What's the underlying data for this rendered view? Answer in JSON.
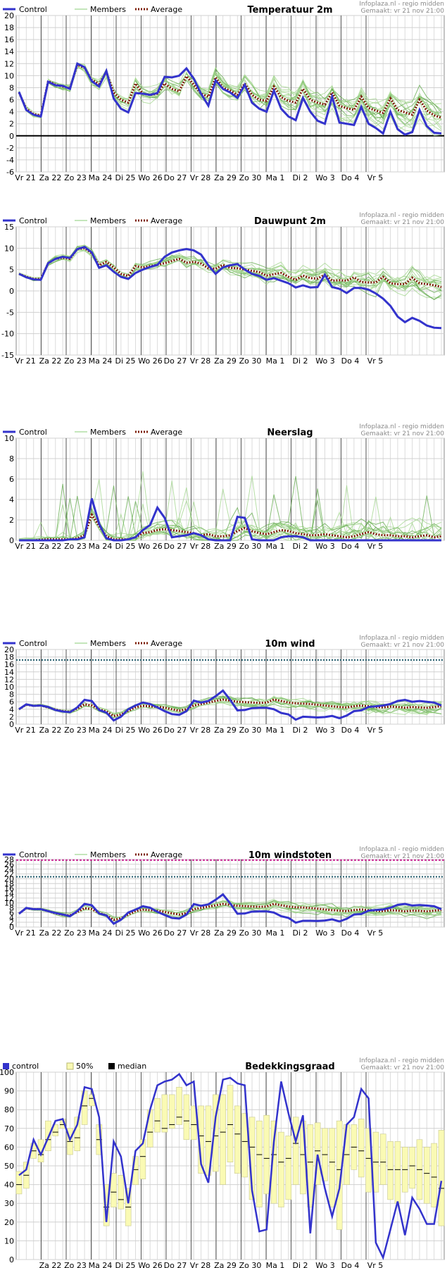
{
  "chart_data": [
    {
      "type": "line",
      "title": "Temperatuur 2m",
      "source": "Infoplaza.nl - regio midden",
      "made": "Gemaakt: vr 21 nov 21:00",
      "legend": [
        "Control",
        "Members",
        "Average"
      ],
      "days": [
        "Vr 21",
        "Za 22",
        "Zo 23",
        "Ma 24",
        "Di 25",
        "Wo 26",
        "Do 27",
        "Vr 28",
        "Za 29",
        "Zo 30",
        "Ma 1",
        "Di 2",
        "Wo 3",
        "Do 4",
        "Vr 5"
      ],
      "ylim": [
        -6,
        20
      ],
      "yticks": [
        -6,
        -4,
        -2,
        0,
        2,
        4,
        6,
        8,
        10,
        12,
        14,
        16,
        18,
        20
      ],
      "zero_line": true,
      "series": [
        {
          "name": "Control",
          "values": [
            7.3,
            4.3,
            3.5,
            3.2,
            9.0,
            8.4,
            8.3,
            7.8,
            12.0,
            11.4,
            9.1,
            8.2,
            10.8,
            6.2,
            4.5,
            3.9,
            7.1,
            7.0,
            6.8,
            7.1,
            9.8,
            9.7,
            10.0,
            11.2,
            9.5,
            7.0,
            5.0,
            9.2,
            7.8,
            7.2,
            6.3,
            8.5,
            5.5,
            4.5,
            4.0,
            7.5,
            4.5,
            3.2,
            2.6,
            6.3,
            4.0,
            2.5,
            2.0,
            6.5,
            2.2,
            2.0,
            1.8,
            4.8,
            2.0,
            1.3,
            0.4,
            4.0,
            1.1,
            0.2,
            0.6,
            4.3,
            1.6,
            0.5,
            0.4
          ]
        },
        {
          "name": "Average",
          "values": [
            7.2,
            4.5,
            3.6,
            3.4,
            9.1,
            8.5,
            8.2,
            7.9,
            11.8,
            11.3,
            9.3,
            8.6,
            10.6,
            7.2,
            6.0,
            5.5,
            8.7,
            7.0,
            6.8,
            7.0,
            8.7,
            7.8,
            7.4,
            9.9,
            8.5,
            7.0,
            6.5,
            9.7,
            8.0,
            7.5,
            6.8,
            8.7,
            6.8,
            6.0,
            5.8,
            8.2,
            6.4,
            5.8,
            5.5,
            7.8,
            6.0,
            5.5,
            5.2,
            7.2,
            5.0,
            4.6,
            4.3,
            6.5,
            4.6,
            4.2,
            3.8,
            6.2,
            4.3,
            3.9,
            3.5,
            6.0,
            4.2,
            3.4,
            3.0
          ]
        }
      ]
    },
    {
      "type": "line",
      "title": "Dauwpunt 2m",
      "source": "Infoplaza.nl - regio midden",
      "made": "Gemaakt: vr 21 nov 21:00",
      "legend": [
        "Control",
        "Members",
        "Average"
      ],
      "days": [
        "Vr 21",
        "Za 22",
        "Zo 23",
        "Ma 24",
        "Di 25",
        "Wo 26",
        "Do 27",
        "Vr 28",
        "Za 29",
        "Zo 30",
        "Ma 1",
        "Di 2",
        "Wo 3",
        "Do 4",
        "Vr 5"
      ],
      "ylim": [
        -15,
        15
      ],
      "yticks": [
        -15,
        -10,
        -5,
        0,
        5,
        10,
        15
      ],
      "series": [
        {
          "name": "Control",
          "values": [
            4.0,
            3.2,
            2.7,
            2.6,
            6.5,
            7.5,
            8.0,
            7.7,
            9.8,
            10.3,
            9.0,
            5.4,
            6.0,
            4.5,
            3.3,
            2.8,
            4.2,
            5.0,
            5.6,
            6.1,
            8.0,
            9.0,
            9.5,
            9.8,
            9.5,
            8.5,
            6.0,
            4.0,
            5.5,
            6.0,
            6.3,
            5.0,
            4.0,
            3.5,
            2.6,
            3.0,
            2.4,
            1.8,
            0.8,
            1.3,
            0.8,
            0.9,
            3.8,
            0.9,
            0.5,
            -0.5,
            0.7,
            0.7,
            0.3,
            -0.6,
            -1.8,
            -3.5,
            -6.0,
            -7.3,
            -6.3,
            -7.0,
            -8.1,
            -8.6,
            -8.7
          ]
        },
        {
          "name": "Average",
          "values": [
            4.0,
            3.3,
            2.8,
            2.8,
            6.5,
            7.5,
            7.8,
            7.5,
            9.8,
            10.0,
            8.8,
            6.0,
            6.8,
            5.5,
            4.0,
            3.5,
            5.8,
            5.5,
            5.8,
            6.1,
            6.5,
            7.0,
            7.5,
            6.6,
            6.8,
            6.4,
            5.3,
            5.2,
            6.1,
            5.4,
            5.3,
            5.0,
            4.7,
            4.4,
            3.6,
            3.9,
            4.2,
            3.3,
            2.6,
            3.6,
            3.0,
            2.9,
            3.8,
            2.4,
            2.5,
            2.4,
            3.2,
            2.1,
            2.0,
            2.0,
            3.3,
            1.8,
            1.6,
            1.6,
            3.1,
            1.8,
            1.6,
            1.3,
            0.9
          ]
        }
      ]
    },
    {
      "type": "line",
      "title": "Neerslag",
      "source": "Infoplaza.nl - regio midden",
      "made": "Gemaakt: vr 21 nov 21:00",
      "legend": [
        "Control",
        "Members",
        "Average"
      ],
      "days": [
        "Vr 21",
        "Za 22",
        "Zo 23",
        "Ma 24",
        "Di 25",
        "Wo 26",
        "Do 27",
        "Vr 28",
        "Za 29",
        "Zo 30",
        "Ma 1",
        "Di 2",
        "Wo 3",
        "Do 4",
        "Vr 5"
      ],
      "ylim": [
        0,
        10
      ],
      "yticks": [
        0,
        2,
        4,
        6,
        8,
        10
      ],
      "series": [
        {
          "name": "Control",
          "values": [
            0,
            0,
            0,
            0,
            0,
            0,
            0,
            0.1,
            0.1,
            0.3,
            4.1,
            1.6,
            0.2,
            0,
            0,
            0.1,
            0.3,
            1.0,
            1.5,
            3.2,
            2.2,
            0.3,
            0.4,
            0.5,
            0.7,
            0.5,
            0.1,
            0,
            0,
            0,
            2.3,
            2.2,
            0.1,
            0,
            0,
            0,
            0.3,
            0.4,
            0.4,
            0.3,
            0,
            0,
            0,
            0,
            0,
            0,
            0,
            0,
            0,
            0,
            0,
            0,
            0,
            0,
            0,
            0,
            0,
            0,
            0
          ]
        },
        {
          "name": "Average",
          "values": [
            0,
            0,
            0,
            0.05,
            0.1,
            0.1,
            0.1,
            0.1,
            0.2,
            0.5,
            2.5,
            1.4,
            0.4,
            0.1,
            0.1,
            0.1,
            0.3,
            0.7,
            0.8,
            1.0,
            1.1,
            1.0,
            0.9,
            0.8,
            0.7,
            0.5,
            0.6,
            0.4,
            0.4,
            0.5,
            0.9,
            1.2,
            0.9,
            0.7,
            0.6,
            0.8,
            1.0,
            0.9,
            0.7,
            0.6,
            0.5,
            0.5,
            0.6,
            0.5,
            0.4,
            0.3,
            0.4,
            0.6,
            0.8,
            0.6,
            0.5,
            0.5,
            0.4,
            0.4,
            0.3,
            0.4,
            0.5,
            0.3,
            0.4
          ]
        }
      ]
    },
    {
      "type": "line",
      "title": "10m wind",
      "source": "Infoplaza.nl - regio midden",
      "made": "Gemaakt: vr 21 nov 21:00",
      "legend": [
        "Control",
        "Members",
        "Average"
      ],
      "days": [
        "Vr 21",
        "Za 22",
        "Zo 23",
        "Ma 24",
        "Di 25",
        "Wo 26",
        "Do 27",
        "Vr 28",
        "Za 29",
        "Zo 30",
        "Ma 1",
        "Di 2",
        "Wo 3",
        "Do 4",
        "Vr 5"
      ],
      "ylim": [
        0,
        20
      ],
      "yticks": [
        0,
        2,
        4,
        6,
        8,
        10,
        12,
        14,
        16,
        18,
        20
      ],
      "threshold": 17.2,
      "series": [
        {
          "name": "Control",
          "values": [
            4.0,
            5.3,
            4.9,
            5.0,
            4.6,
            3.8,
            3.4,
            3.2,
            4.5,
            6.5,
            6.2,
            3.8,
            3.1,
            1.0,
            2.0,
            4.0,
            5.0,
            5.8,
            5.4,
            4.5,
            3.5,
            2.7,
            2.5,
            3.5,
            6.3,
            5.8,
            6.2,
            7.5,
            9.0,
            6.5,
            3.7,
            3.8,
            4.3,
            4.4,
            4.4,
            4.0,
            3.0,
            2.6,
            1.2,
            2.0,
            1.9,
            1.8,
            1.9,
            2.2,
            1.6,
            2.3,
            3.5,
            3.7,
            4.6,
            4.8,
            5.0,
            5.4,
            6.2,
            6.5,
            6.0,
            6.2,
            6.0,
            5.8,
            5.0
          ]
        },
        {
          "name": "Average",
          "values": [
            4.0,
            5.2,
            4.9,
            5.0,
            4.5,
            3.9,
            3.5,
            3.3,
            4.2,
            5.3,
            5.0,
            4.0,
            3.4,
            2.2,
            2.6,
            3.6,
            4.5,
            4.9,
            4.8,
            4.6,
            4.4,
            4.0,
            3.6,
            4.0,
            5.0,
            5.4,
            5.8,
            6.2,
            6.6,
            6.3,
            6.0,
            5.9,
            5.8,
            5.7,
            5.8,
            6.6,
            6.2,
            5.8,
            5.6,
            5.5,
            5.4,
            5.2,
            5.0,
            4.8,
            4.6,
            4.5,
            4.8,
            5.0,
            4.8,
            4.6,
            4.5,
            4.7,
            4.6,
            4.4,
            4.6,
            4.5,
            4.4,
            4.6,
            4.8
          ]
        }
      ]
    },
    {
      "type": "line",
      "title": "10m windstoten",
      "source": "Infoplaza.nl - regio midden",
      "made": "Gemaakt: vr 21 nov 21:00",
      "legend": [
        "Control",
        "Members",
        "Average"
      ],
      "days": [
        "Vr 21",
        "Za 22",
        "Zo 23",
        "Ma 24",
        "Di 25",
        "Wo 26",
        "Do 27",
        "Vr 28",
        "Za 29",
        "Zo 30",
        "Ma 1",
        "Di 2",
        "Wo 3",
        "Do 4",
        "Vr 5"
      ],
      "ylim": [
        0,
        28
      ],
      "yticks": [
        0,
        2,
        4,
        6,
        8,
        10,
        12,
        14,
        16,
        18,
        20,
        22,
        24,
        26,
        28
      ],
      "threshold": 20.8,
      "threshold_top": 28,
      "series": [
        {
          "name": "Control",
          "values": [
            5.5,
            7.9,
            7.4,
            7.4,
            6.6,
            5.8,
            5.2,
            4.5,
            6.6,
            9.6,
            9.0,
            5.6,
            4.8,
            1.4,
            3.0,
            6.0,
            7.2,
            8.6,
            8.0,
            6.3,
            5.0,
            3.8,
            3.5,
            5.2,
            9.5,
            8.8,
            9.4,
            11.3,
            13.5,
            9.8,
            5.5,
            5.6,
            6.4,
            6.5,
            6.5,
            6.0,
            4.5,
            3.8,
            1.8,
            2.6,
            2.6,
            2.5,
            2.7,
            3.2,
            2.3,
            3.4,
            5.2,
            5.4,
            6.8,
            7.1,
            7.3,
            8.0,
            9.2,
            9.6,
            8.9,
            9.1,
            8.9,
            8.6,
            7.4
          ]
        },
        {
          "name": "Average",
          "values": [
            5.6,
            7.8,
            7.4,
            7.4,
            6.6,
            5.7,
            5.1,
            4.8,
            6.2,
            7.8,
            7.4,
            5.8,
            4.8,
            3.0,
            3.6,
            5.2,
            6.6,
            7.2,
            7.0,
            6.7,
            6.3,
            5.7,
            5.2,
            5.8,
            7.4,
            7.9,
            8.4,
            9.0,
            9.6,
            9.2,
            8.8,
            8.7,
            8.5,
            8.4,
            8.5,
            9.6,
            9.0,
            8.5,
            8.2,
            8.1,
            7.9,
            7.6,
            7.3,
            7.0,
            6.8,
            6.6,
            7.0,
            7.3,
            7.0,
            6.8,
            6.6,
            7.0,
            6.8,
            6.5,
            6.8,
            6.7,
            6.5,
            6.8,
            7.1
          ]
        }
      ]
    },
    {
      "type": "bar",
      "title": "Bedekkingsgraad",
      "source": "Infoplaza.nl - regio midden",
      "made": "Gemaakt: vr 21 nov 21:00",
      "legend": [
        "control",
        "50%",
        "median"
      ],
      "days": [
        "Za 22",
        "Zo 23",
        "Ma 24",
        "Di 25",
        "Wo 26",
        "Do 27",
        "Vr 28",
        "Za 29",
        "Zo 30",
        "Ma 1",
        "Di 2",
        "Wo 3",
        "Do 4",
        "Vr 5"
      ],
      "ylim": [
        0,
        100
      ],
      "yticks": [
        0,
        10,
        20,
        30,
        40,
        50,
        60,
        70,
        80,
        90,
        100
      ],
      "series": [
        {
          "name": "control",
          "values": [
            45,
            48,
            64,
            56,
            65,
            74,
            75,
            64,
            72,
            92,
            91,
            76,
            20,
            63,
            55,
            30,
            58,
            62,
            80,
            93,
            95,
            96,
            99,
            93,
            95,
            51,
            41,
            76,
            96,
            97,
            94,
            93,
            37,
            15,
            16,
            63,
            95,
            78,
            63,
            77,
            14,
            56,
            38,
            23,
            38,
            72,
            76,
            91,
            86,
            9,
            1,
            16,
            31,
            13,
            33,
            27,
            19,
            19,
            42
          ]
        },
        {
          "name": "50% low",
          "values": [
            35,
            38,
            54,
            52,
            58,
            66,
            70,
            56,
            58,
            72,
            82,
            56,
            18,
            28,
            27,
            18,
            40,
            43,
            60,
            68,
            68,
            70,
            72,
            64,
            64,
            46,
            45,
            47,
            40,
            52,
            46,
            44,
            32,
            28,
            35,
            30,
            28,
            32,
            40,
            35,
            28,
            40,
            42,
            28,
            16,
            40,
            48,
            44,
            36,
            36,
            40,
            32,
            30,
            36,
            38,
            32,
            30,
            28,
            18
          ]
        },
        {
          "name": "50% high",
          "values": [
            47,
            52,
            62,
            64,
            74,
            72,
            75,
            70,
            76,
            90,
            88,
            72,
            40,
            46,
            45,
            38,
            55,
            64,
            80,
            86,
            88,
            88,
            92,
            88,
            82,
            82,
            82,
            88,
            88,
            93,
            82,
            78,
            76,
            74,
            77,
            74,
            68,
            66,
            76,
            74,
            72,
            73,
            70,
            70,
            74,
            72,
            72,
            75,
            70,
            68,
            67,
            63,
            63,
            60,
            60,
            64,
            60,
            62,
            69
          ]
        },
        {
          "name": "median",
          "values": [
            40,
            45,
            58,
            56,
            64,
            68,
            72,
            63,
            65,
            82,
            86,
            64,
            28,
            36,
            32,
            28,
            48,
            55,
            68,
            74,
            70,
            72,
            76,
            74,
            72,
            66,
            63,
            66,
            68,
            72,
            67,
            63,
            60,
            56,
            54,
            56,
            52,
            54,
            62,
            56,
            52,
            58,
            56,
            52,
            48,
            56,
            60,
            58,
            54,
            52,
            52,
            48,
            48,
            48,
            50,
            48,
            46,
            44,
            38
          ]
        }
      ]
    }
  ]
}
